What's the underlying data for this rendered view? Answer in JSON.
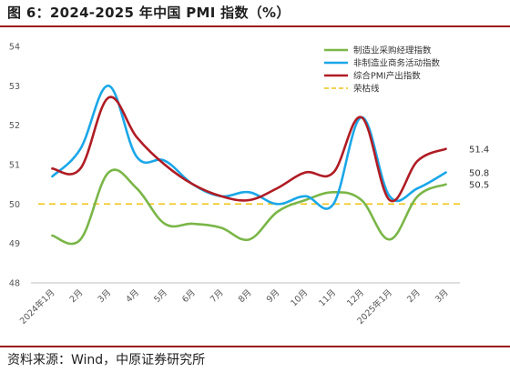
{
  "header": {
    "title": "图 6：2024-2025 年中国 PMI 指数（%）"
  },
  "footer": {
    "source": "资料来源：Wind，中原证券研究所"
  },
  "chart_data": {
    "type": "line",
    "categories": [
      "2024年1月",
      "2月",
      "3月",
      "4月",
      "5月",
      "6月",
      "7月",
      "8月",
      "9月",
      "10月",
      "11月",
      "12月",
      "2025年1月",
      "2月",
      "3月"
    ],
    "series": [
      {
        "name": "制造业采购经理指数",
        "color": "#7ab648",
        "values": [
          49.2,
          49.1,
          50.8,
          50.4,
          49.5,
          49.5,
          49.4,
          49.1,
          49.8,
          50.1,
          50.3,
          50.1,
          49.1,
          50.2,
          50.5
        ]
      },
      {
        "name": "非制造业商务活动指数",
        "color": "#1aa7e8",
        "values": [
          50.7,
          51.4,
          53.0,
          51.2,
          51.1,
          50.5,
          50.2,
          50.3,
          50.0,
          50.2,
          50.0,
          52.2,
          50.2,
          50.4,
          50.8
        ]
      },
      {
        "name": "综合PMI产出指数",
        "color": "#b01c24",
        "values": [
          50.9,
          50.9,
          52.7,
          51.7,
          51.0,
          50.5,
          50.2,
          50.1,
          50.4,
          50.8,
          50.8,
          52.2,
          50.1,
          51.1,
          51.4
        ]
      },
      {
        "name": "荣枯线",
        "color": "#f0c419",
        "dashed": true,
        "values": [
          50,
          50,
          50,
          50,
          50,
          50,
          50,
          50,
          50,
          50,
          50,
          50,
          50,
          50,
          50
        ]
      }
    ],
    "end_labels": [
      "51.4",
      "50.8",
      "50.5"
    ],
    "yticks": [
      "54",
      "53",
      "52",
      "51",
      "50",
      "49",
      "48"
    ],
    "ylim": [
      48,
      54
    ],
    "legend_position": "top-right"
  }
}
